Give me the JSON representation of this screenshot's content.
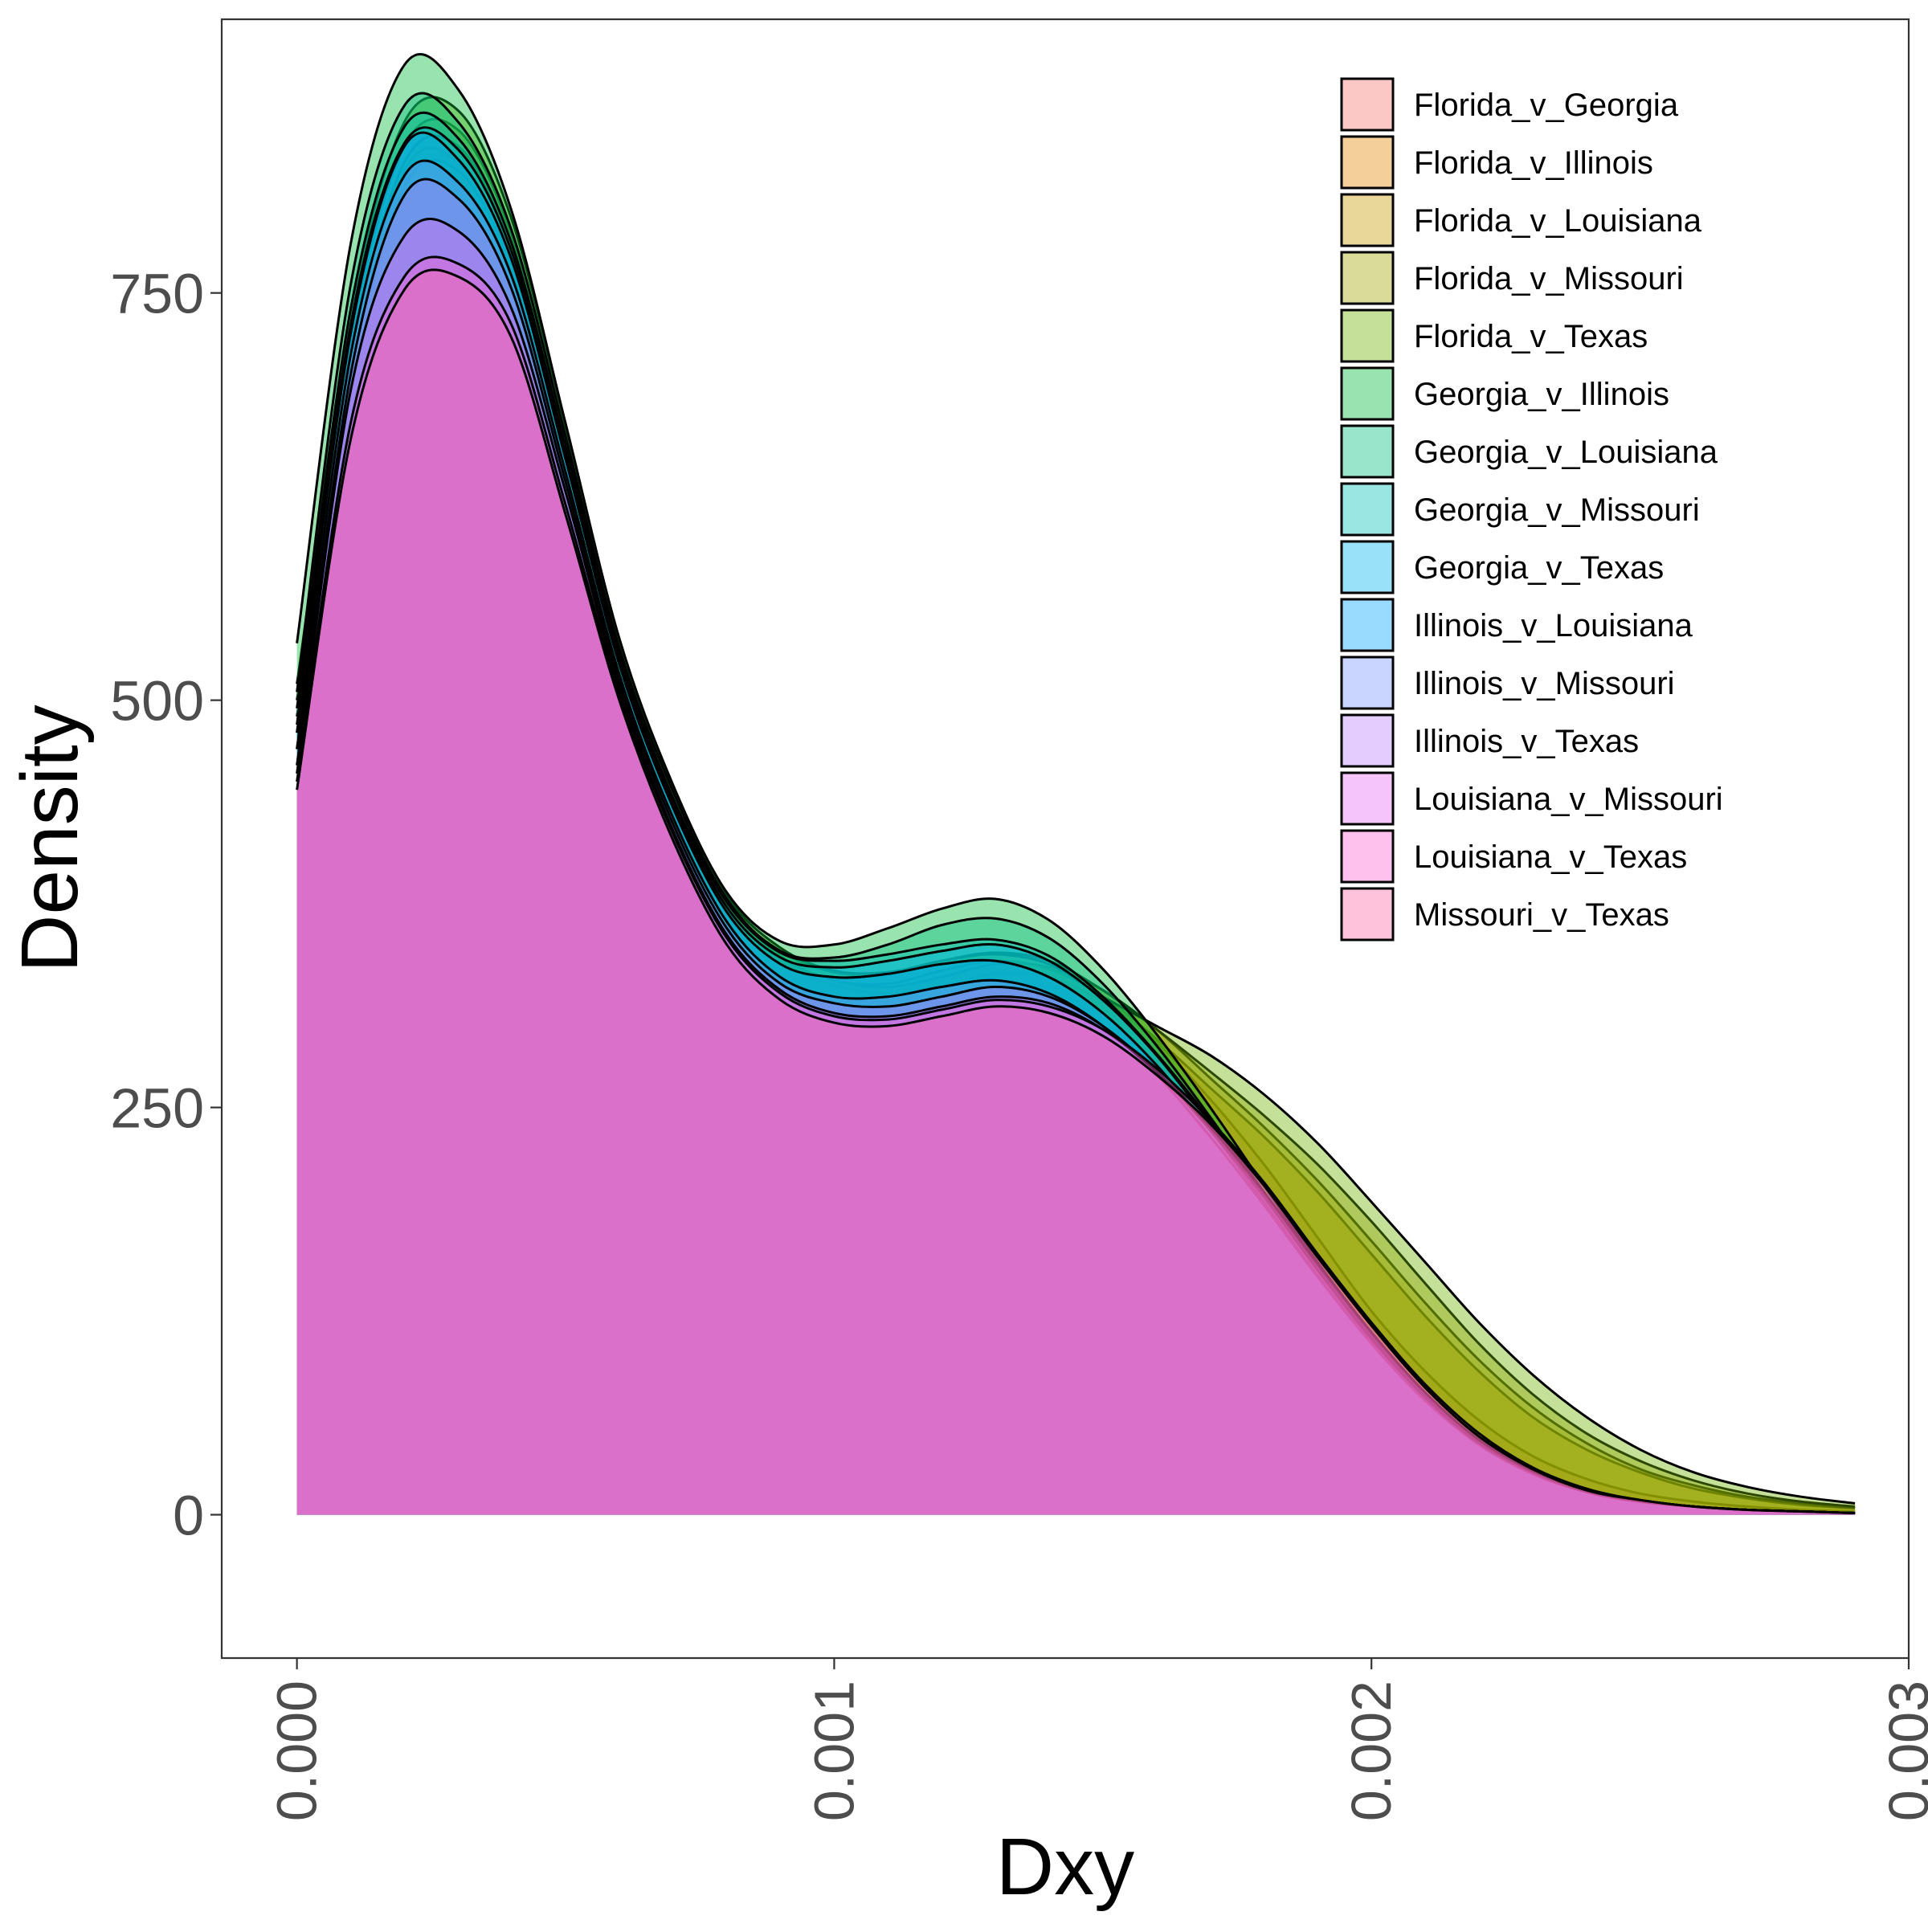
{
  "chart_data": {
    "type": "area",
    "subtype": "overlapping density",
    "xlabel": "Dxy",
    "ylabel": "Density",
    "xlim": [
      -0.00014,
      0.003
    ],
    "ylim": [
      -88,
      918
    ],
    "x_ticks": [
      "0.000",
      "0.001",
      "0.002",
      "0.003"
    ],
    "y_ticks": [
      "0",
      "250",
      "500",
      "750"
    ],
    "grid": false,
    "legend_position": "top-right",
    "fill_alpha": 0.4,
    "x": [
      0.0,
      0.0001,
      0.0002,
      0.0003,
      0.0004,
      0.0005,
      0.0006,
      0.0007,
      0.0008,
      0.0009,
      0.001,
      0.0011,
      0.0012,
      0.0013,
      0.0014,
      0.0015,
      0.0016,
      0.0017,
      0.0018,
      0.0019,
      0.002,
      0.0021,
      0.0022,
      0.0023,
      0.0024,
      0.0025,
      0.0026,
      0.0027,
      0.0028,
      0.0029
    ],
    "series": [
      {
        "name": "Florida_v_Georgia",
        "color": "#F8766D",
        "values": [
          480,
          700,
          825,
          830,
          770,
          650,
          520,
          430,
          370,
          340,
          325,
          320,
          325,
          332,
          330,
          315,
          290,
          255,
          215,
          170,
          125,
          88,
          58,
          36,
          22,
          13,
          8,
          5,
          3,
          2
        ]
      },
      {
        "name": "Florida_v_Illinois",
        "color": "#E58700",
        "values": [
          500,
          720,
          840,
          850,
          785,
          660,
          530,
          440,
          375,
          343,
          328,
          326,
          334,
          340,
          335,
          318,
          292,
          262,
          232,
          198,
          160,
          122,
          88,
          60,
          40,
          26,
          16,
          10,
          6,
          4
        ]
      },
      {
        "name": "Florida_v_Louisiana",
        "color": "#C99800",
        "values": [
          470,
          690,
          815,
          825,
          765,
          648,
          520,
          432,
          372,
          342,
          328,
          324,
          330,
          338,
          336,
          322,
          298,
          268,
          238,
          205,
          168,
          130,
          95,
          66,
          44,
          28,
          18,
          11,
          7,
          4
        ]
      },
      {
        "name": "Florida_v_Missouri",
        "color": "#A3A500",
        "values": [
          490,
          710,
          830,
          840,
          778,
          655,
          526,
          438,
          376,
          346,
          333,
          332,
          340,
          345,
          340,
          322,
          298,
          272,
          245,
          215,
          180,
          142,
          105,
          74,
          50,
          33,
          21,
          13,
          8,
          5
        ]
      },
      {
        "name": "Florida_v_Texas",
        "color": "#6BB100",
        "values": [
          510,
          735,
          855,
          862,
          795,
          668,
          536,
          446,
          380,
          348,
          334,
          333,
          340,
          344,
          338,
          318,
          300,
          282,
          258,
          228,
          192,
          155,
          118,
          86,
          60,
          40,
          26,
          17,
          11,
          7
        ]
      },
      {
        "name": "Georgia_v_Illinois",
        "color": "#00BA38",
        "values": [
          535,
          780,
          890,
          875,
          800,
          670,
          538,
          448,
          382,
          352,
          350,
          360,
          372,
          378,
          365,
          335,
          295,
          250,
          202,
          155,
          112,
          75,
          46,
          27,
          15,
          9,
          5,
          3,
          2,
          1
        ]
      },
      {
        "name": "Georgia_v_Louisiana",
        "color": "#00BF7D",
        "values": [
          505,
          755,
          865,
          855,
          788,
          662,
          532,
          444,
          378,
          346,
          342,
          350,
          362,
          366,
          354,
          326,
          288,
          244,
          198,
          152,
          110,
          74,
          46,
          27,
          15,
          9,
          5,
          3,
          2,
          1
        ]
      },
      {
        "name": "Georgia_v_Missouri",
        "color": "#00C0B8",
        "values": [
          495,
          740,
          852,
          845,
          780,
          656,
          528,
          440,
          376,
          345,
          340,
          344,
          350,
          353,
          343,
          318,
          283,
          242,
          197,
          152,
          110,
          74,
          46,
          27,
          15,
          9,
          5,
          3,
          2,
          1
        ]
      },
      {
        "name": "Georgia_v_Texas",
        "color": "#00B4EF",
        "values": [
          485,
          730,
          842,
          838,
          775,
          652,
          525,
          437,
          373,
          342,
          336,
          340,
          346,
          350,
          340,
          316,
          282,
          240,
          195,
          150,
          108,
          72,
          45,
          26,
          14,
          8,
          5,
          3,
          2,
          1
        ]
      },
      {
        "name": "Illinois_v_Louisiana",
        "color": "#00A5FF",
        "values": [
          480,
          725,
          840,
          832,
          770,
          648,
          522,
          434,
          370,
          338,
          330,
          332,
          338,
          340,
          330,
          308,
          276,
          236,
          192,
          147,
          106,
          71,
          44,
          26,
          14,
          8,
          5,
          3,
          2,
          1
        ]
      },
      {
        "name": "Illinois_v_Missouri",
        "color": "#7997FF",
        "values": [
          470,
          712,
          822,
          818,
          760,
          640,
          516,
          428,
          364,
          330,
          318,
          318,
          324,
          328,
          320,
          300,
          270,
          232,
          190,
          146,
          105,
          70,
          43,
          25,
          14,
          8,
          5,
          3,
          2,
          1
        ]
      },
      {
        "name": "Illinois_v_Texas",
        "color": "#BF80FF",
        "values": [
          460,
          700,
          810,
          808,
          752,
          634,
          512,
          424,
          360,
          326,
          314,
          312,
          318,
          324,
          318,
          300,
          272,
          236,
          195,
          150,
          108,
          72,
          44,
          26,
          14,
          8,
          5,
          3,
          2,
          1
        ]
      },
      {
        "name": "Louisiana_v_Missouri",
        "color": "#E76BF3",
        "values": [
          455,
          690,
          785,
          788,
          740,
          628,
          508,
          420,
          356,
          322,
          308,
          306,
          312,
          318,
          314,
          298,
          272,
          238,
          198,
          154,
          112,
          75,
          46,
          27,
          15,
          9,
          5,
          3,
          2,
          1
        ]
      },
      {
        "name": "Louisiana_v_Texas",
        "color": "#FD61D1",
        "values": [
          450,
          670,
          760,
          768,
          730,
          620,
          504,
          418,
          354,
          320,
          306,
          304,
          310,
          316,
          312,
          298,
          274,
          242,
          204,
          160,
          118,
          80,
          50,
          29,
          16,
          9,
          5,
          3,
          2,
          1
        ]
      },
      {
        "name": "Missouri_v_Texas",
        "color": "#FF67A4",
        "values": [
          445,
          660,
          752,
          760,
          722,
          614,
          500,
          414,
          350,
          316,
          302,
          300,
          306,
          312,
          308,
          294,
          270,
          240,
          202,
          158,
          116,
          78,
          48,
          28,
          15,
          9,
          5,
          3,
          2,
          1
        ]
      }
    ]
  }
}
